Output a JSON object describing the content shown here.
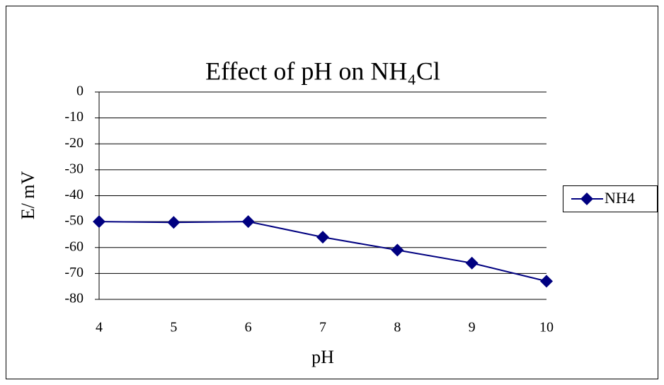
{
  "chart_data": {
    "type": "line",
    "title": "Effect of pH on NH₄Cl",
    "x_label": "pH",
    "y_label": "E/ mV",
    "x": [
      4,
      5,
      6,
      7,
      8,
      9,
      10
    ],
    "series": [
      {
        "name": "NH4",
        "color": "#000080",
        "values": [
          -50,
          -50.3,
          -50,
          -56,
          -61,
          -66,
          -73
        ]
      }
    ],
    "xlim": [
      4,
      10
    ],
    "xticks": [
      4,
      5,
      6,
      7,
      8,
      9,
      10
    ],
    "ylim": [
      -80,
      0
    ],
    "yticks": [
      0,
      -10,
      -20,
      -30,
      -40,
      -50,
      -60,
      -70,
      -80
    ],
    "grid": true,
    "legend": "right"
  }
}
